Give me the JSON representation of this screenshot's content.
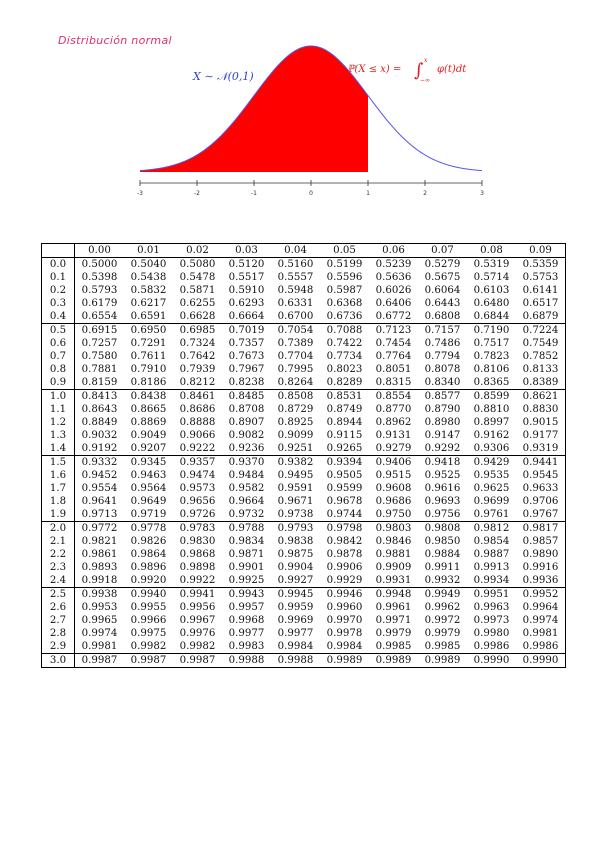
{
  "title": "Distribución normal",
  "distribution_label": "X ∼ 𝒩(0,1)",
  "probability_label": {
    "lhs": "ℙ(X ≤ x) =",
    "integral": "∫",
    "upper": "x",
    "lower": "−∞",
    "integrand": "φ(t)dt"
  },
  "colors": {
    "fill": "#ff0000",
    "curve": "#5555ee",
    "title": "#e0306e",
    "formula": "#e02020"
  },
  "chart_data": {
    "type": "area",
    "curve": "standard normal density",
    "shaded_upper_limit": 1,
    "x_ticks": [
      "-3",
      "-2",
      "-1",
      "0",
      "1",
      "2",
      "3"
    ],
    "xlim": [
      -3,
      3
    ]
  },
  "table": {
    "columns": [
      "0.00",
      "0.01",
      "0.02",
      "0.03",
      "0.04",
      "0.05",
      "0.06",
      "0.07",
      "0.08",
      "0.09"
    ],
    "rows": [
      {
        "z": "0.0",
        "v": [
          "0.5000",
          "0.5040",
          "0.5080",
          "0.5120",
          "0.5160",
          "0.5199",
          "0.5239",
          "0.5279",
          "0.5319",
          "0.5359"
        ]
      },
      {
        "z": "0.1",
        "v": [
          "0.5398",
          "0.5438",
          "0.5478",
          "0.5517",
          "0.5557",
          "0.5596",
          "0.5636",
          "0.5675",
          "0.5714",
          "0.5753"
        ]
      },
      {
        "z": "0.2",
        "v": [
          "0.5793",
          "0.5832",
          "0.5871",
          "0.5910",
          "0.5948",
          "0.5987",
          "0.6026",
          "0.6064",
          "0.6103",
          "0.6141"
        ]
      },
      {
        "z": "0.3",
        "v": [
          "0.6179",
          "0.6217",
          "0.6255",
          "0.6293",
          "0.6331",
          "0.6368",
          "0.6406",
          "0.6443",
          "0.6480",
          "0.6517"
        ]
      },
      {
        "z": "0.4",
        "v": [
          "0.6554",
          "0.6591",
          "0.6628",
          "0.6664",
          "0.6700",
          "0.6736",
          "0.6772",
          "0.6808",
          "0.6844",
          "0.6879"
        ]
      },
      {
        "z": "0.5",
        "v": [
          "0.6915",
          "0.6950",
          "0.6985",
          "0.7019",
          "0.7054",
          "0.7088",
          "0.7123",
          "0.7157",
          "0.7190",
          "0.7224"
        ]
      },
      {
        "z": "0.6",
        "v": [
          "0.7257",
          "0.7291",
          "0.7324",
          "0.7357",
          "0.7389",
          "0.7422",
          "0.7454",
          "0.7486",
          "0.7517",
          "0.7549"
        ]
      },
      {
        "z": "0.7",
        "v": [
          "0.7580",
          "0.7611",
          "0.7642",
          "0.7673",
          "0.7704",
          "0.7734",
          "0.7764",
          "0.7794",
          "0.7823",
          "0.7852"
        ]
      },
      {
        "z": "0.8",
        "v": [
          "0.7881",
          "0.7910",
          "0.7939",
          "0.7967",
          "0.7995",
          "0.8023",
          "0.8051",
          "0.8078",
          "0.8106",
          "0.8133"
        ]
      },
      {
        "z": "0.9",
        "v": [
          "0.8159",
          "0.8186",
          "0.8212",
          "0.8238",
          "0.8264",
          "0.8289",
          "0.8315",
          "0.8340",
          "0.8365",
          "0.8389"
        ]
      },
      {
        "z": "1.0",
        "v": [
          "0.8413",
          "0.8438",
          "0.8461",
          "0.8485",
          "0.8508",
          "0.8531",
          "0.8554",
          "0.8577",
          "0.8599",
          "0.8621"
        ]
      },
      {
        "z": "1.1",
        "v": [
          "0.8643",
          "0.8665",
          "0.8686",
          "0.8708",
          "0.8729",
          "0.8749",
          "0.8770",
          "0.8790",
          "0.8810",
          "0.8830"
        ]
      },
      {
        "z": "1.2",
        "v": [
          "0.8849",
          "0.8869",
          "0.8888",
          "0.8907",
          "0.8925",
          "0.8944",
          "0.8962",
          "0.8980",
          "0.8997",
          "0.9015"
        ]
      },
      {
        "z": "1.3",
        "v": [
          "0.9032",
          "0.9049",
          "0.9066",
          "0.9082",
          "0.9099",
          "0.9115",
          "0.9131",
          "0.9147",
          "0.9162",
          "0.9177"
        ]
      },
      {
        "z": "1.4",
        "v": [
          "0.9192",
          "0.9207",
          "0.9222",
          "0.9236",
          "0.9251",
          "0.9265",
          "0.9279",
          "0.9292",
          "0.9306",
          "0.9319"
        ]
      },
      {
        "z": "1.5",
        "v": [
          "0.9332",
          "0.9345",
          "0.9357",
          "0.9370",
          "0.9382",
          "0.9394",
          "0.9406",
          "0.9418",
          "0.9429",
          "0.9441"
        ]
      },
      {
        "z": "1.6",
        "v": [
          "0.9452",
          "0.9463",
          "0.9474",
          "0.9484",
          "0.9495",
          "0.9505",
          "0.9515",
          "0.9525",
          "0.9535",
          "0.9545"
        ]
      },
      {
        "z": "1.7",
        "v": [
          "0.9554",
          "0.9564",
          "0.9573",
          "0.9582",
          "0.9591",
          "0.9599",
          "0.9608",
          "0.9616",
          "0.9625",
          "0.9633"
        ]
      },
      {
        "z": "1.8",
        "v": [
          "0.9641",
          "0.9649",
          "0.9656",
          "0.9664",
          "0.9671",
          "0.9678",
          "0.9686",
          "0.9693",
          "0.9699",
          "0.9706"
        ]
      },
      {
        "z": "1.9",
        "v": [
          "0.9713",
          "0.9719",
          "0.9726",
          "0.9732",
          "0.9738",
          "0.9744",
          "0.9750",
          "0.9756",
          "0.9761",
          "0.9767"
        ]
      },
      {
        "z": "2.0",
        "v": [
          "0.9772",
          "0.9778",
          "0.9783",
          "0.9788",
          "0.9793",
          "0.9798",
          "0.9803",
          "0.9808",
          "0.9812",
          "0.9817"
        ]
      },
      {
        "z": "2.1",
        "v": [
          "0.9821",
          "0.9826",
          "0.9830",
          "0.9834",
          "0.9838",
          "0.9842",
          "0.9846",
          "0.9850",
          "0.9854",
          "0.9857"
        ]
      },
      {
        "z": "2.2",
        "v": [
          "0.9861",
          "0.9864",
          "0.9868",
          "0.9871",
          "0.9875",
          "0.9878",
          "0.9881",
          "0.9884",
          "0.9887",
          "0.9890"
        ]
      },
      {
        "z": "2.3",
        "v": [
          "0.9893",
          "0.9896",
          "0.9898",
          "0.9901",
          "0.9904",
          "0.9906",
          "0.9909",
          "0.9911",
          "0.9913",
          "0.9916"
        ]
      },
      {
        "z": "2.4",
        "v": [
          "0.9918",
          "0.9920",
          "0.9922",
          "0.9925",
          "0.9927",
          "0.9929",
          "0.9931",
          "0.9932",
          "0.9934",
          "0.9936"
        ]
      },
      {
        "z": "2.5",
        "v": [
          "0.9938",
          "0.9940",
          "0.9941",
          "0.9943",
          "0.9945",
          "0.9946",
          "0.9948",
          "0.9949",
          "0.9951",
          "0.9952"
        ]
      },
      {
        "z": "2.6",
        "v": [
          "0.9953",
          "0.9955",
          "0.9956",
          "0.9957",
          "0.9959",
          "0.9960",
          "0.9961",
          "0.9962",
          "0.9963",
          "0.9964"
        ]
      },
      {
        "z": "2.7",
        "v": [
          "0.9965",
          "0.9966",
          "0.9967",
          "0.9968",
          "0.9969",
          "0.9970",
          "0.9971",
          "0.9972",
          "0.9973",
          "0.9974"
        ]
      },
      {
        "z": "2.8",
        "v": [
          "0.9974",
          "0.9975",
          "0.9976",
          "0.9977",
          "0.9977",
          "0.9978",
          "0.9979",
          "0.9979",
          "0.9980",
          "0.9981"
        ]
      },
      {
        "z": "2.9",
        "v": [
          "0.9981",
          "0.9982",
          "0.9982",
          "0.9983",
          "0.9984",
          "0.9984",
          "0.9985",
          "0.9985",
          "0.9986",
          "0.9986"
        ]
      },
      {
        "z": "3.0",
        "v": [
          "0.9987",
          "0.9987",
          "0.9987",
          "0.9988",
          "0.9988",
          "0.9989",
          "0.9989",
          "0.9989",
          "0.9990",
          "0.9990"
        ]
      }
    ]
  }
}
